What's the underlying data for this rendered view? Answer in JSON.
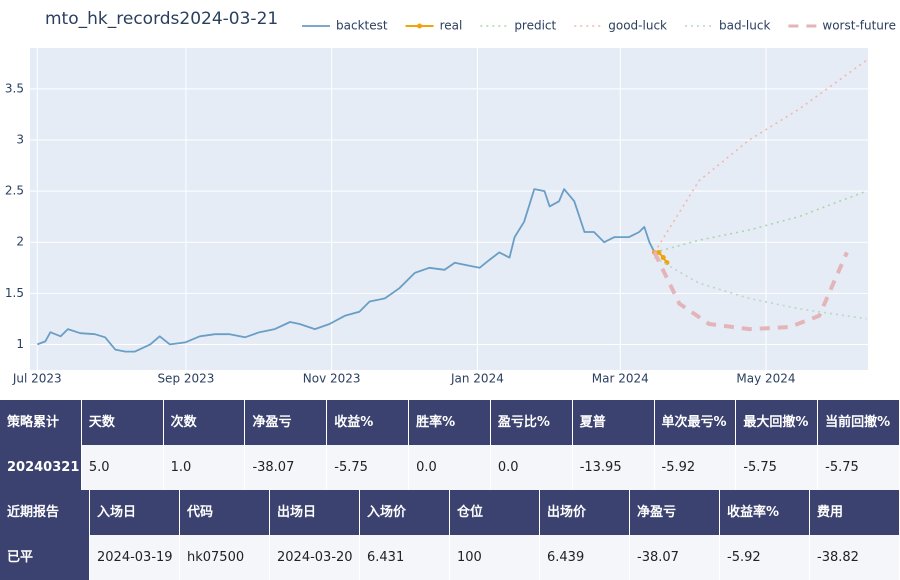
{
  "chart_data": {
    "type": "line",
    "title": "mto_hk_records2024-03-21",
    "xlim": [
      -0.1,
      11.4
    ],
    "xticks": [
      {
        "value": 0,
        "label": "Jul 2023"
      },
      {
        "value": 2.04,
        "label": "Sep 2023"
      },
      {
        "value": 4.04,
        "label": "Nov 2023"
      },
      {
        "value": 6.04,
        "label": "Jan 2024"
      },
      {
        "value": 8.0,
        "label": "Mar 2024"
      },
      {
        "value": 10.0,
        "label": "May 2024"
      }
    ],
    "ylim": [
      0.75,
      3.9
    ],
    "yticks": [
      1,
      1.5,
      2,
      2.5,
      3,
      3.5
    ],
    "grid": true,
    "series": [
      {
        "name": "backtest",
        "color": "#6a9ec5",
        "style": "solid",
        "x": [
          0,
          0.11,
          0.18,
          0.32,
          0.42,
          0.59,
          0.79,
          0.93,
          1.07,
          1.21,
          1.34,
          1.55,
          1.68,
          1.82,
          2.03,
          2.23,
          2.44,
          2.64,
          2.85,
          3.05,
          3.26,
          3.47,
          3.6,
          3.81,
          4.01,
          4.22,
          4.42,
          4.56,
          4.77,
          4.97,
          5.18,
          5.38,
          5.59,
          5.73,
          5.93,
          6.07,
          6.21,
          6.34,
          6.48,
          6.55,
          6.68,
          6.82,
          6.96,
          7.03,
          7.16,
          7.23,
          7.37,
          7.51,
          7.64,
          7.78,
          7.92,
          8.12,
          8.26,
          8.33,
          8.4,
          8.47
        ],
        "values": [
          1.0,
          1.03,
          1.12,
          1.08,
          1.15,
          1.11,
          1.1,
          1.07,
          0.95,
          0.93,
          0.93,
          1.0,
          1.08,
          1.0,
          1.02,
          1.08,
          1.1,
          1.1,
          1.07,
          1.12,
          1.15,
          1.22,
          1.2,
          1.15,
          1.2,
          1.28,
          1.32,
          1.42,
          1.45,
          1.55,
          1.7,
          1.75,
          1.73,
          1.8,
          1.77,
          1.75,
          1.83,
          1.9,
          1.85,
          2.05,
          2.2,
          2.52,
          2.5,
          2.35,
          2.4,
          2.52,
          2.4,
          2.1,
          2.1,
          2.0,
          2.05,
          2.05,
          2.1,
          2.15,
          2.0,
          1.9
        ]
      },
      {
        "name": "real",
        "color": "#f0a30a",
        "style": "marker",
        "x": [
          8.47,
          8.53,
          8.59,
          8.64
        ],
        "values": [
          1.9,
          1.9,
          1.85,
          1.8
        ]
      },
      {
        "name": "predict",
        "color": "#a8d8a8",
        "style": "dot",
        "x": [
          8.47,
          9.08,
          9.77,
          10.45,
          11.38
        ],
        "values": [
          1.9,
          2.02,
          2.12,
          2.25,
          2.5
        ]
      },
      {
        "name": "good-luck",
        "color": "#f2b6ae",
        "style": "dot",
        "x": [
          8.47,
          9.08,
          9.77,
          10.45,
          11.38
        ],
        "values": [
          1.9,
          2.6,
          3.0,
          3.3,
          3.78
        ]
      },
      {
        "name": "bad-luck",
        "color": "#b8d8c0",
        "style": "dot",
        "x": [
          8.47,
          9.08,
          9.77,
          10.45,
          11.38
        ],
        "values": [
          1.85,
          1.6,
          1.45,
          1.35,
          1.25
        ]
      },
      {
        "name": "worst-future",
        "color": "#e3b5b9",
        "style": "dash",
        "x": [
          8.47,
          8.81,
          9.22,
          9.77,
          10.32,
          10.73,
          11.11
        ],
        "values": [
          1.9,
          1.4,
          1.2,
          1.15,
          1.17,
          1.28,
          1.9
        ]
      }
    ]
  },
  "tables": [
    {
      "header": [
        "策略累计",
        "天数",
        "次数",
        "净盈亏",
        "收益%",
        "胜率%",
        "盈亏比%",
        "夏普",
        "单次最亏%",
        "最大回撤%",
        "当前回撤%"
      ],
      "rows": [
        [
          "20240321",
          "5.0",
          "1.0",
          "-38.07",
          "-5.75",
          "0.0",
          "0.0",
          "-13.95",
          "-5.92",
          "-5.75",
          "-5.75"
        ]
      ]
    },
    {
      "header": [
        "近期报告",
        "入场日",
        "代码",
        "出场日",
        "入场价",
        "仓位",
        "出场价",
        "净盈亏",
        "收益率%",
        "费用"
      ],
      "rows": [
        [
          "已平",
          "2024-03-19",
          "hk07500",
          "2024-03-20",
          "6.431",
          "100",
          "6.439",
          "-38.07",
          "-5.92",
          "-38.82"
        ]
      ]
    }
  ]
}
